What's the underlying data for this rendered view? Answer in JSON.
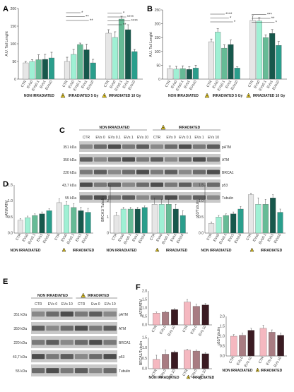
{
  "panels": {
    "A": {
      "letter": "A",
      "ylabel": "A.U. Tail Lenght",
      "yticks": [
        "0",
        "50",
        "100",
        "150",
        "200"
      ],
      "ymax": 200,
      "groups": [
        {
          "label": "NON IRRADIATED",
          "cats": [
            "CTR",
            "EVs0",
            "EVs0.1",
            "EVs1",
            "EVs10"
          ],
          "values": [
            46,
            50,
            55,
            56,
            60
          ],
          "errors": [
            4,
            5,
            14,
            14,
            16
          ]
        },
        {
          "label": "IRRADIATED 5 Gy",
          "cats": [
            "CTR",
            "EVs0",
            "EVs0.1",
            "EVs1",
            "EVs10"
          ],
          "values": [
            50,
            70,
            98,
            83,
            46
          ],
          "errors": [
            12,
            14,
            4,
            16,
            10
          ]
        },
        {
          "label": "IRRADIATED 10 Gy",
          "cats": [
            "CTR",
            "EVs0",
            "EVs0.1",
            "EVs1",
            "EVs10"
          ],
          "values": [
            130,
            118,
            170,
            140,
            78
          ],
          "errors": [
            10,
            16,
            8,
            14,
            6
          ]
        }
      ],
      "stars": [
        "*",
        "**",
        "**",
        "*",
        "****",
        "****",
        "**"
      ]
    },
    "B": {
      "letter": "B",
      "ylabel": "A.U. Tail Lenght",
      "yticks": [
        "0",
        "50",
        "100",
        "150",
        "200",
        "250"
      ],
      "ymax": 250,
      "groups": [
        {
          "label": "NON IRRADIATED",
          "cats": [
            "CTR",
            "EVs0",
            "EVs0.1",
            "EVs1",
            "EVs10"
          ],
          "values": [
            38,
            36,
            38,
            35,
            40
          ],
          "errors": [
            10,
            10,
            10,
            10,
            10
          ]
        },
        {
          "label": "IRRADIATED 5 Gy",
          "cats": [
            "CTR",
            "EVs0",
            "EVs0.1",
            "EVs1",
            "EVs10"
          ],
          "values": [
            135,
            170,
            112,
            125,
            40
          ],
          "errors": [
            10,
            12,
            12,
            16,
            4
          ]
        },
        {
          "label": "IRRADIATED 10 Gy",
          "cats": [
            "CTR",
            "EVs0",
            "EVs0.1",
            "EVs1",
            "EVs10"
          ],
          "values": [
            212,
            210,
            150,
            165,
            122
          ],
          "errors": [
            16,
            12,
            10,
            14,
            14
          ]
        }
      ],
      "stars": [
        "****",
        "*",
        "*",
        "***",
        "**",
        "*"
      ]
    },
    "C": {
      "letter": "C",
      "header_left": "NON IRRADIATED",
      "header_right": "IRRADIATED",
      "lanes": [
        "CTR",
        "EVs 0",
        "EVs 0.1",
        "EVs 1",
        "EVs 10",
        "CTR",
        "EVs 0",
        "EVs 0.1",
        "EVs 1",
        "EVs 10"
      ],
      "rows": [
        {
          "kda": "351 kDa",
          "protein": "pATM"
        },
        {
          "kda": "350 kDa",
          "protein": "ATM"
        },
        {
          "kda": "220 kDa",
          "protein": "BRCA1"
        },
        {
          "kda": "43,7 kDa",
          "protein": "p53"
        },
        {
          "kda": "55 kDa",
          "protein": "Tubulin"
        }
      ]
    },
    "D": {
      "letter": "D",
      "footer_left": "NON IRRADIATED",
      "footer_right": "IRRADIATED",
      "plots": [
        {
          "ylabel": "pATM/ATM",
          "yticks": [
            "0.0",
            "0.5",
            "1.0",
            "1.5"
          ],
          "ymax": 1.5,
          "cats": [
            "CTR",
            "EVs0",
            "EVs0.1",
            "EVs1",
            "EVs10",
            "CTR",
            "EVs0",
            "EVs0.1",
            "EVs1",
            "EVs10"
          ],
          "values": [
            0.4,
            0.48,
            0.55,
            0.6,
            0.7,
            0.95,
            0.88,
            0.8,
            0.7,
            0.65
          ],
          "errors": [
            0.05,
            0.05,
            0.05,
            0.06,
            0.06,
            0.12,
            0.1,
            0.12,
            0.1,
            0.12
          ]
        },
        {
          "ylabel": "BRCA1/ Tubulin",
          "yticks": [
            "0",
            "1",
            "2",
            "3"
          ],
          "ymax": 3,
          "cats": [
            "CTR",
            "EVs0",
            "EVs0.1",
            "EVs1",
            "EVs10",
            "CTR",
            "EVs0",
            "EVs0.1",
            "EVs1",
            "EVs10"
          ],
          "values": [
            1.1,
            1.5,
            1.5,
            1.5,
            1.6,
            1.8,
            1.8,
            1.8,
            1.5,
            1.1
          ],
          "errors": [
            0.2,
            0.1,
            0.1,
            0.1,
            0.1,
            0.4,
            0.3,
            0.3,
            0.3,
            0.3
          ]
        },
        {
          "ylabel": "p53/Tubulin",
          "yticks": [
            "0.0",
            "0.5",
            "1.0",
            "1.5"
          ],
          "ymax": 1.5,
          "cats": [
            "CTR",
            "EVs0",
            "EVs0.1",
            "EVs1",
            "EVs10",
            "CTR",
            "EVs0",
            "EVs0.1",
            "EVs1",
            "EVs10"
          ],
          "values": [
            0.3,
            0.5,
            0.55,
            0.6,
            0.75,
            1.2,
            0.9,
            0.9,
            1.1,
            0.65
          ],
          "errors": [
            0.05,
            0.05,
            0.05,
            0.06,
            0.08,
            0.05,
            0.2,
            0.15,
            0.1,
            0.1
          ]
        }
      ]
    },
    "E": {
      "letter": "E",
      "header_left": "NON IRRADIATED",
      "header_right": "IRRADIATED",
      "lanes": [
        "CTR",
        "EVs 0",
        "EVs 10",
        "CTR",
        "Evs 0",
        "EVs 10"
      ],
      "rows": [
        {
          "kda": "351 kDa",
          "protein": "pATM"
        },
        {
          "kda": "350 kDa",
          "protein": "ATM"
        },
        {
          "kda": "220 kDa",
          "protein": "BRCA1"
        },
        {
          "kda": "43,7 kDa",
          "protein": "p53"
        },
        {
          "kda": "55 kDa",
          "protein": "Tubulin"
        }
      ]
    },
    "F": {
      "letter": "F",
      "footer_left": "NON IRRADIATED",
      "footer_right": "IRRADIATED",
      "plots": [
        {
          "ylabel": "pATM/ATM",
          "yticks": [
            "0.0",
            "0.5",
            "1.0",
            "1.5",
            "2.0"
          ],
          "ymax": 2.0,
          "cats": [
            "CTR",
            "EVs 0",
            "EVs 10",
            "CTR",
            "EVs 0",
            "EVs 10"
          ],
          "values": [
            0.7,
            0.75,
            0.9,
            1.35,
            1.1,
            1.18
          ],
          "errors": [
            0.06,
            0.06,
            0.06,
            0.15,
            0.12,
            0.08
          ]
        },
        {
          "ylabel": "BRCA1/Tubulin",
          "yticks": [
            "0.0",
            "0.5",
            "1.0",
            "1.5"
          ],
          "ymax": 1.5,
          "cats": [
            "CTR",
            "EVs 0",
            "EVs 10",
            "CTR",
            "EVs 0",
            "EVs 10"
          ],
          "values": [
            0.45,
            0.7,
            0.8,
            0.9,
            0.85,
            0.72
          ],
          "errors": [
            0.2,
            0.2,
            0.05,
            0.03,
            0.05,
            0.06
          ]
        },
        {
          "ylabel": "p53/Tubulin",
          "yticks": [
            "0.0",
            "0.5",
            "1.0",
            "1.5",
            "2.0"
          ],
          "ymax": 2.0,
          "cats": [
            "CTR",
            "EVs 0",
            "EVs 10",
            "CTR",
            "EVs 0",
            "EVs 10"
          ],
          "values": [
            1.0,
            1.05,
            1.3,
            1.4,
            1.2,
            1.05
          ],
          "errors": [
            0.08,
            0.1,
            0.1,
            0.15,
            0.12,
            0.1
          ]
        }
      ]
    }
  },
  "colors": {
    "gray": "#e6e6e6",
    "mint": "#9ff0d4",
    "green": "#66bb96",
    "dark": "#17584c",
    "teal": "#2a9e8c",
    "pink": "#f5b8c0",
    "mauve": "#a87c82",
    "plum": "#3a1b22"
  }
}
